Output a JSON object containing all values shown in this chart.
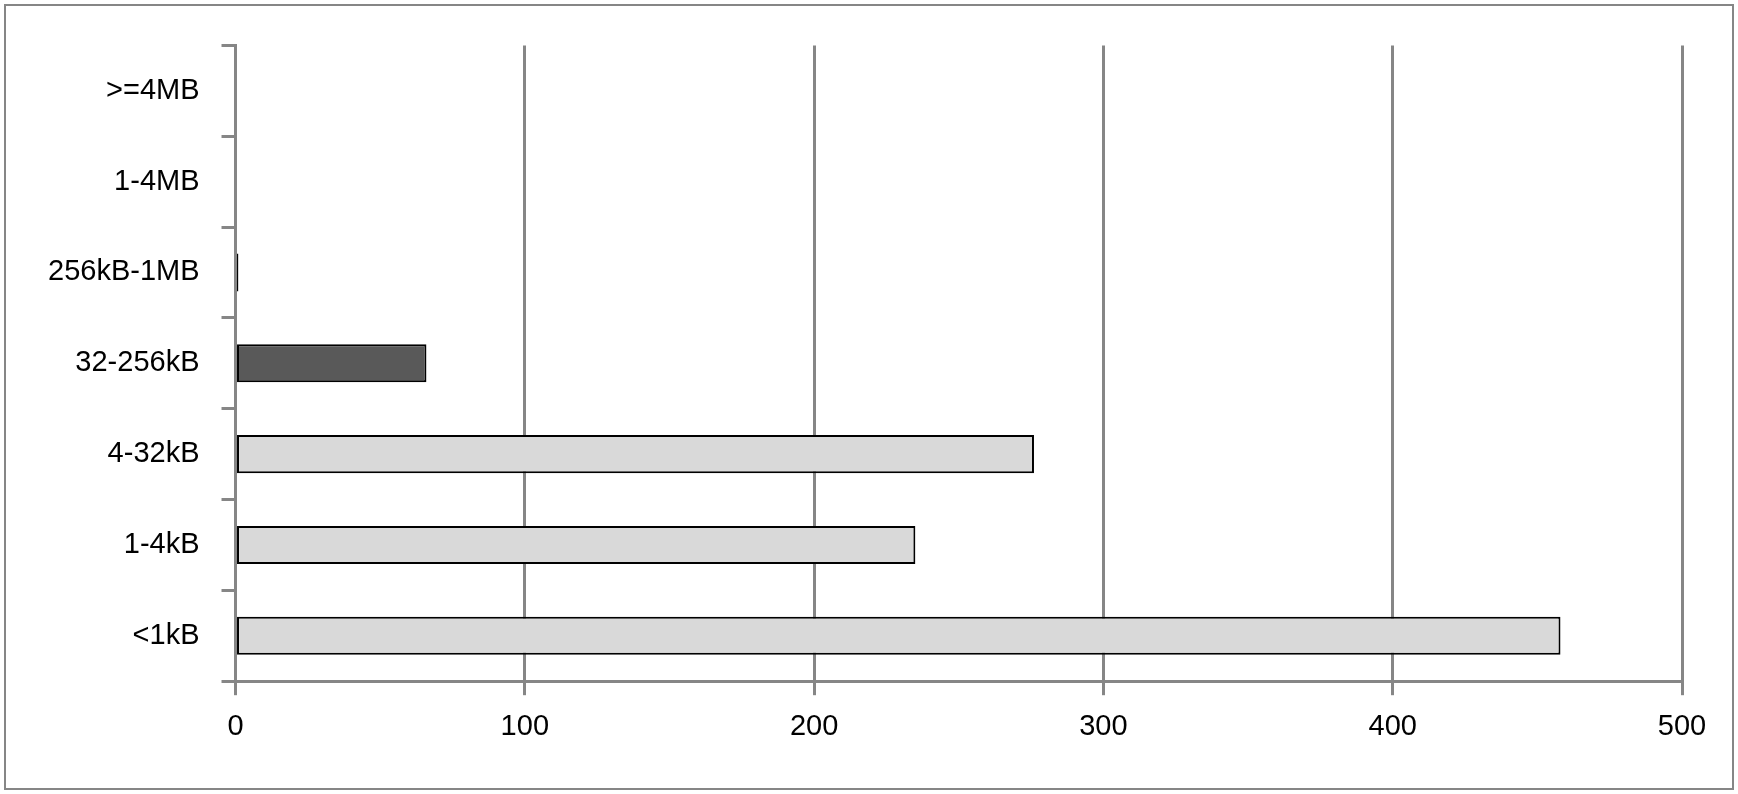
{
  "chart_data": {
    "type": "bar",
    "orientation": "horizontal",
    "categories": [
      ">=4MB",
      "1-4MB",
      "256kB-1MB",
      "32-256kB",
      "4-32kB",
      "1-4kB",
      "<1kB"
    ],
    "values": [
      0,
      0,
      1,
      66,
      276,
      235,
      458
    ],
    "colors": [
      "#595959",
      "#595959",
      "#000000",
      "#595959",
      "#d9d9d9",
      "#d9d9d9",
      "#d9d9d9"
    ],
    "xlim": [
      0,
      500
    ],
    "xticks": [
      0,
      100,
      200,
      300,
      400,
      500
    ],
    "grid": "x",
    "legend": false
  }
}
